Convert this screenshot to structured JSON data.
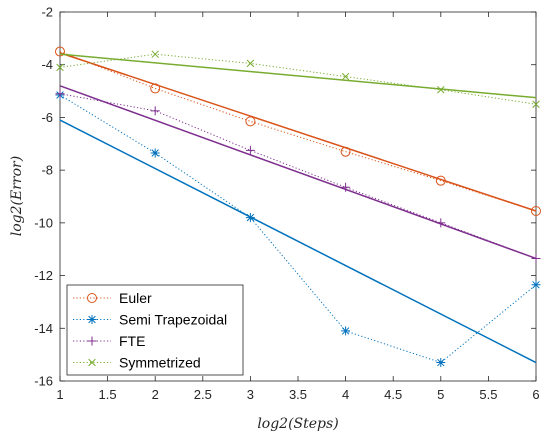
{
  "chart_data": {
    "type": "line",
    "xlabel": "log2(Steps)",
    "ylabel": "log2(Error)",
    "xlim": [
      1,
      6
    ],
    "ylim": [
      -16,
      -2
    ],
    "xticks": [
      "1",
      "1.5",
      "2",
      "2.5",
      "3",
      "3.5",
      "4",
      "4.5",
      "5",
      "5.5",
      "6"
    ],
    "yticks": [
      "-2",
      "-4",
      "-6",
      "-8",
      "-10",
      "-12",
      "-14",
      "-16"
    ],
    "x": [
      1,
      2,
      3,
      4,
      5,
      6
    ],
    "series": [
      {
        "name": "Euler",
        "color": "#D95319",
        "marker": "circle",
        "values": [
          -3.5,
          -4.9,
          -6.15,
          -7.3,
          -8.4,
          -9.55
        ],
        "fit": [
          -3.55,
          -9.55
        ]
      },
      {
        "name": "Semi Trapezoidal",
        "color": "#0072BD",
        "marker": "asterisk",
        "values": [
          -5.15,
          -7.35,
          -9.8,
          -14.1,
          -15.3,
          -12.35
        ],
        "fit": [
          -6.1,
          -15.3
        ]
      },
      {
        "name": "FTE",
        "color": "#7E2F8E",
        "marker": "plus",
        "values": [
          -5.1,
          -5.75,
          -7.25,
          -8.65,
          -10.0,
          -11.35
        ],
        "fit": [
          -4.8,
          -11.35
        ]
      },
      {
        "name": "Symmetrized",
        "color": "#77AC30",
        "marker": "x",
        "values": [
          -4.1,
          -3.6,
          -3.95,
          -4.45,
          -4.95,
          -5.5
        ],
        "fit": [
          -3.6,
          -5.25
        ]
      }
    ],
    "legend_position": "bottom-left",
    "grid": false
  }
}
